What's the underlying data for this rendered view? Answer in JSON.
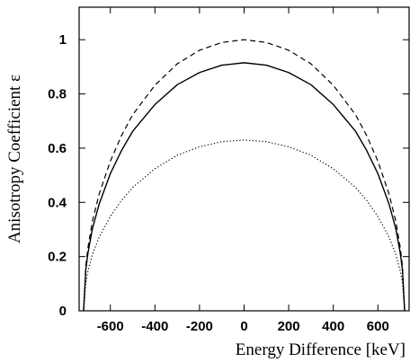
{
  "chart_data": {
    "type": "line",
    "title": "",
    "xlabel": "Energy Difference [keV]",
    "ylabel": "Anisotropy Coefficient ε",
    "xlim": [
      -740,
      740
    ],
    "ylim": [
      0,
      1.12
    ],
    "x_ticks": [
      -600,
      -400,
      -200,
      0,
      200,
      400,
      600
    ],
    "x_tick_labels": [
      "-600",
      "-400",
      "-200",
      "0",
      "200",
      "400",
      "600"
    ],
    "y_ticks": [
      0,
      0.2,
      0.4,
      0.6,
      0.8,
      1
    ],
    "y_tick_labels": [
      "0",
      "0.2",
      "0.4",
      "0.6",
      "0.8",
      "1"
    ],
    "grid": false,
    "legend": "none",
    "series": [
      {
        "style": "dashed",
        "color": "#000000",
        "x": [
          -720,
          -710,
          -700,
          -680,
          -650,
          -600,
          -550,
          -500,
          -400,
          -300,
          -200,
          -100,
          0,
          100,
          200,
          300,
          400,
          500,
          550,
          600,
          650,
          680,
          700,
          710,
          720
        ],
        "y": [
          0,
          0.166,
          0.235,
          0.332,
          0.431,
          0.552,
          0.646,
          0.723,
          0.832,
          0.911,
          0.961,
          0.99,
          1.0,
          0.99,
          0.961,
          0.911,
          0.832,
          0.723,
          0.646,
          0.552,
          0.431,
          0.332,
          0.235,
          0.166,
          0
        ]
      },
      {
        "style": "solid",
        "color": "#000000",
        "x": [
          -720,
          -710,
          -700,
          -680,
          -650,
          -600,
          -550,
          -500,
          -400,
          -300,
          -200,
          -100,
          0,
          100,
          200,
          300,
          400,
          500,
          550,
          600,
          650,
          680,
          700,
          710,
          720
        ],
        "y": [
          0,
          0.152,
          0.215,
          0.304,
          0.394,
          0.506,
          0.591,
          0.662,
          0.761,
          0.834,
          0.879,
          0.906,
          0.915,
          0.906,
          0.879,
          0.834,
          0.761,
          0.662,
          0.591,
          0.506,
          0.394,
          0.304,
          0.215,
          0.152,
          0
        ]
      },
      {
        "style": "dotted",
        "color": "#000000",
        "x": [
          -720,
          -710,
          -700,
          -680,
          -650,
          -600,
          -550,
          -500,
          -400,
          -300,
          -200,
          -100,
          0,
          100,
          200,
          300,
          400,
          500,
          550,
          600,
          650,
          680,
          700,
          710,
          720
        ],
        "y": [
          0,
          0.105,
          0.148,
          0.209,
          0.272,
          0.348,
          0.407,
          0.455,
          0.524,
          0.574,
          0.605,
          0.624,
          0.63,
          0.624,
          0.605,
          0.574,
          0.524,
          0.455,
          0.407,
          0.348,
          0.272,
          0.209,
          0.148,
          0.105,
          0
        ]
      }
    ]
  }
}
